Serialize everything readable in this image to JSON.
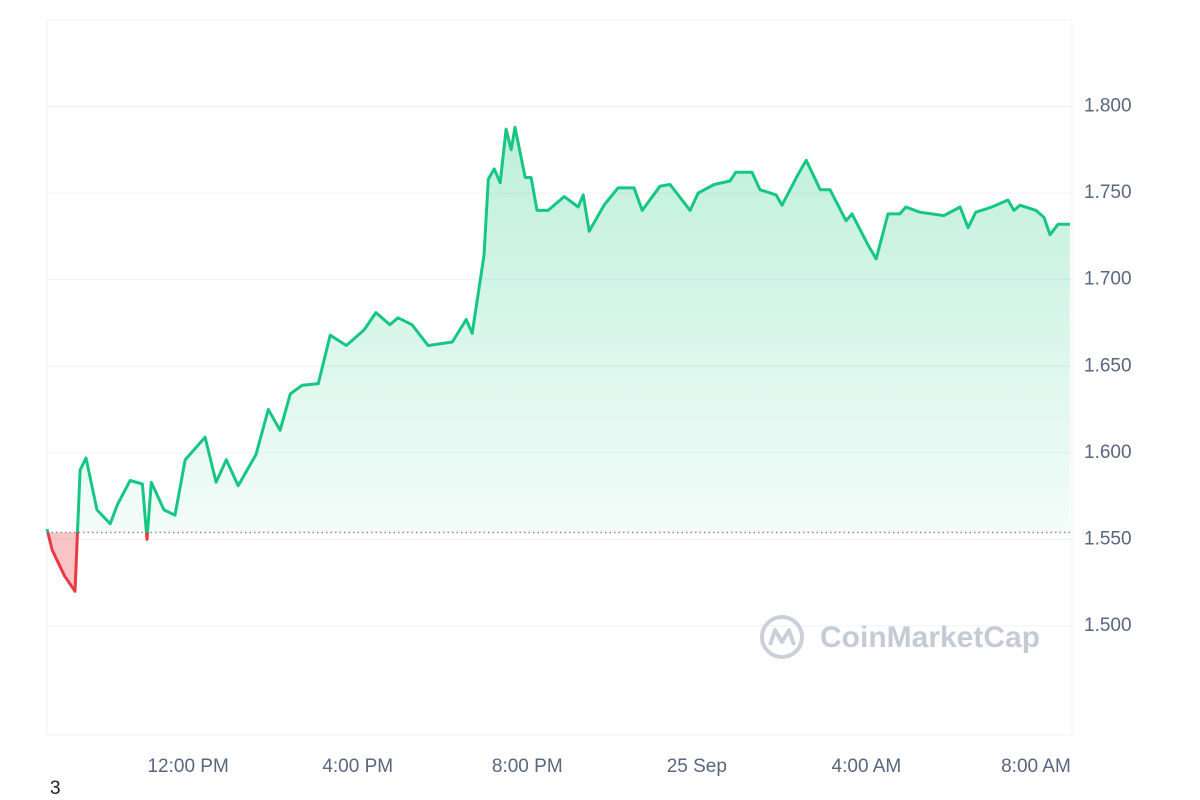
{
  "chart_data": {
    "type": "line",
    "x": [
      8.67,
      8.79,
      9.08,
      9.33,
      9.45,
      9.59,
      9.85,
      10.16,
      10.33,
      10.63,
      10.92,
      11.03,
      11.13,
      11.43,
      11.69,
      11.93,
      12.4,
      12.66,
      12.9,
      13.18,
      13.6,
      13.89,
      14.17,
      14.41,
      14.69,
      15.07,
      15.35,
      15.73,
      16.15,
      16.43,
      16.76,
      16.95,
      17.28,
      17.66,
      18.23,
      18.56,
      18.7,
      18.98,
      19.08,
      19.22,
      19.36,
      19.5,
      19.62,
      19.71,
      19.95,
      20.09,
      20.23,
      20.49,
      20.87,
      21.2,
      21.32,
      21.46,
      21.81,
      22.14,
      22.52,
      22.71,
      23.13,
      23.37,
      23.84,
      24.03,
      24.41,
      24.78,
      24.92,
      25.3,
      25.49,
      25.87,
      26.01,
      26.39,
      26.58,
      26.91,
      27.14,
      27.52,
      27.66,
      28.04,
      28.23,
      28.51,
      28.79,
      28.93,
      29.26,
      29.83,
      30.21,
      30.4,
      30.58,
      30.96,
      31.34,
      31.48,
      31.62,
      32.0,
      32.19,
      32.33,
      32.52,
      32.8
    ],
    "series": [
      {
        "name": "Price",
        "color": "#16c784",
        "down_color": "#ea3943",
        "values": [
          1.556,
          1.544,
          1.529,
          1.52,
          1.59,
          1.597,
          1.567,
          1.559,
          1.57,
          1.584,
          1.582,
          1.55,
          1.583,
          1.567,
          1.564,
          1.596,
          1.609,
          1.583,
          1.596,
          1.581,
          1.599,
          1.625,
          1.613,
          1.634,
          1.639,
          1.64,
          1.668,
          1.662,
          1.671,
          1.681,
          1.674,
          1.678,
          1.674,
          1.662,
          1.664,
          1.677,
          1.669,
          1.714,
          1.758,
          1.764,
          1.756,
          1.787,
          1.775,
          1.788,
          1.759,
          1.759,
          1.74,
          1.74,
          1.748,
          1.742,
          1.749,
          1.728,
          1.743,
          1.753,
          1.753,
          1.74,
          1.754,
          1.755,
          1.74,
          1.75,
          1.755,
          1.757,
          1.762,
          1.762,
          1.752,
          1.749,
          1.743,
          1.761,
          1.769,
          1.752,
          1.752,
          1.734,
          1.738,
          1.72,
          1.712,
          1.738,
          1.738,
          1.742,
          1.739,
          1.737,
          1.742,
          1.73,
          1.739,
          1.742,
          1.746,
          1.74,
          1.743,
          1.74,
          1.736,
          1.726,
          1.732,
          1.732
        ]
      }
    ],
    "baseline": 1.554,
    "xlim": [
      8.67,
      32.85
    ],
    "xticks": [
      {
        "value": 12,
        "label": "12:00 PM"
      },
      {
        "value": 16,
        "label": "4:00 PM"
      },
      {
        "value": 20,
        "label": "8:00 PM"
      },
      {
        "value": 24,
        "label": "25 Sep"
      },
      {
        "value": 28,
        "label": "4:00 AM"
      },
      {
        "value": 32,
        "label": "8:00 AM"
      }
    ],
    "ylim": [
      1.437,
      1.85
    ],
    "yticks": [
      {
        "value": 1.5,
        "label": "1.500"
      },
      {
        "value": 1.55,
        "label": "1.550"
      },
      {
        "value": 1.6,
        "label": "1.600"
      },
      {
        "value": 1.65,
        "label": "1.650"
      },
      {
        "value": 1.7,
        "label": "1.700"
      },
      {
        "value": 1.75,
        "label": "1.750"
      },
      {
        "value": 1.8,
        "label": "1.800"
      }
    ],
    "grid": true,
    "watermark": "CoinMarketCap",
    "footnote": "3"
  }
}
